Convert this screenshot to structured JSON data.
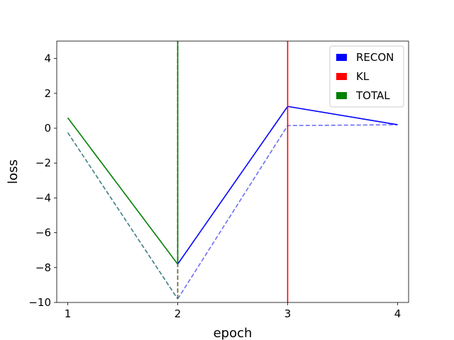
{
  "chart_data": {
    "type": "line",
    "xlabel": "epoch",
    "ylabel": "loss",
    "xlim": [
      0.9,
      4.1
    ],
    "ylim": [
      -10,
      5
    ],
    "x_ticks": [
      1,
      2,
      3,
      4
    ],
    "y_ticks": [
      4,
      2,
      0,
      -2,
      -4,
      -6,
      -8,
      -10
    ],
    "y_tick_labels": [
      "4",
      "2",
      "0",
      "−2",
      "−4",
      "−6",
      "−8",
      "−10"
    ],
    "grid": false,
    "legend_position": "upper-right",
    "legend": [
      {
        "label": "RECON",
        "color": "#0000ff"
      },
      {
        "label": "KL",
        "color": "#ff0000"
      },
      {
        "label": "TOTAL",
        "color": "#008000"
      }
    ],
    "lines": [
      {
        "series": "RECON",
        "style": "dashed",
        "color": "#6e6ef5",
        "x": [
          2,
          3,
          4
        ],
        "y": [
          -9.8,
          0.15,
          0.2
        ]
      },
      {
        "series": "RECON",
        "style": "dashed",
        "color": "#3f7f7f",
        "x": [
          1,
          2
        ],
        "y": [
          -0.25,
          -9.8
        ]
      },
      {
        "series": "KL",
        "style": "dashed",
        "color": "#ff7f7f",
        "x": [
          2,
          2
        ],
        "y": [
          -9.8,
          5
        ]
      },
      {
        "series": "TOTAL",
        "style": "dashed",
        "color": "#3f7f3f",
        "x": [
          2,
          2
        ],
        "y": [
          -9.8,
          5
        ]
      },
      {
        "series": "RECON",
        "style": "solid",
        "color": "#0000ff",
        "x": [
          2,
          3,
          4
        ],
        "y": [
          -7.8,
          1.25,
          0.2
        ]
      },
      {
        "series": "TOTAL",
        "style": "solid",
        "color": "#008000",
        "x": [
          1,
          2
        ],
        "y": [
          0.6,
          -7.8
        ]
      },
      {
        "series": "TOTAL",
        "style": "solid",
        "color": "#008000",
        "x": [
          2,
          2
        ],
        "y": [
          -7.8,
          5
        ]
      },
      {
        "series": "KL",
        "style": "solid",
        "color": "#ff0000",
        "x": [
          3,
          3
        ],
        "y": [
          -10,
          5
        ]
      }
    ]
  }
}
